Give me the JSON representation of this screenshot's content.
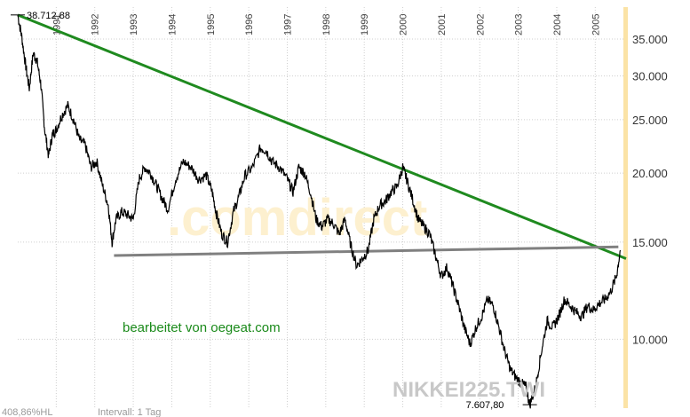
{
  "chart_data": {
    "type": "line",
    "title": "",
    "symbol": "NIKKEI225.TWI",
    "watermark": ".comdirect",
    "annotation": "bearbeitet von oegeat.com",
    "footer": {
      "range": "408,86%HL",
      "interval": "Intervall: 1 Tag"
    },
    "y_scale": "log",
    "ylim": [
      7500,
      40000
    ],
    "xlim": [
      1990.0,
      2005.8
    ],
    "y_axis_position": "right",
    "grid": true,
    "year_labels": [
      "1991",
      "1992",
      "1993",
      "1994",
      "1995",
      "1996",
      "1997",
      "1998",
      "1999",
      "2000",
      "2001",
      "2002",
      "2003",
      "2004",
      "2005"
    ],
    "year_ticks": [
      1991,
      1992,
      1993,
      1994,
      1995,
      1996,
      1997,
      1998,
      1999,
      2000,
      2001,
      2002,
      2003,
      2004,
      2005
    ],
    "y_ticks": [
      10000,
      15000,
      20000,
      25000,
      30000,
      35000
    ],
    "y_tick_labels": [
      "10.000",
      "15.000",
      "20.000",
      "25.000",
      "30.000",
      "35.000"
    ],
    "extremes": {
      "high": {
        "label": "38.712,88",
        "x": 1990.0,
        "y": 38712.88
      },
      "low": {
        "label": "7.607,80",
        "x": 2003.3,
        "y": 7607.8
      }
    },
    "series": [
      {
        "color": "#000000",
        "x": [
          1990.0,
          1990.1,
          1990.2,
          1990.3,
          1990.4,
          1990.5,
          1990.6,
          1990.7,
          1990.8,
          1990.9,
          1991.0,
          1991.15,
          1991.3,
          1991.45,
          1991.6,
          1991.75,
          1991.9,
          1992.05,
          1992.2,
          1992.35,
          1992.45,
          1992.55,
          1992.7,
          1992.85,
          1993.0,
          1993.15,
          1993.3,
          1993.45,
          1993.6,
          1993.75,
          1993.9,
          1994.1,
          1994.3,
          1994.5,
          1994.7,
          1994.9,
          1995.05,
          1995.15,
          1995.3,
          1995.45,
          1995.6,
          1995.75,
          1995.9,
          1996.1,
          1996.3,
          1996.45,
          1996.6,
          1996.8,
          1997.0,
          1997.15,
          1997.3,
          1997.45,
          1997.6,
          1997.75,
          1997.9,
          1998.05,
          1998.2,
          1998.35,
          1998.5,
          1998.65,
          1998.8,
          1998.95,
          1999.1,
          1999.25,
          1999.4,
          1999.55,
          1999.7,
          1999.85,
          2000.0,
          2000.1,
          2000.25,
          2000.4,
          2000.55,
          2000.7,
          2000.85,
          2001.0,
          2001.15,
          2001.3,
          2001.45,
          2001.6,
          2001.75,
          2001.9,
          2002.05,
          2002.2,
          2002.35,
          2002.5,
          2002.65,
          2002.8,
          2002.95,
          2003.1,
          2003.2,
          2003.3,
          2003.45,
          2003.6,
          2003.75,
          2003.9,
          2004.05,
          2004.2,
          2004.35,
          2004.5,
          2004.65,
          2004.8,
          2004.95,
          2005.1,
          2005.25,
          2005.4,
          2005.55,
          2005.65
        ],
        "values": [
          38712,
          35500,
          31500,
          28500,
          33000,
          32000,
          29000,
          24000,
          21500,
          23500,
          24000,
          25500,
          26500,
          25000,
          23000,
          22500,
          20500,
          21000,
          19000,
          17500,
          15000,
          16500,
          17000,
          16800,
          16500,
          19500,
          20500,
          20000,
          19000,
          18000,
          17200,
          19500,
          21000,
          20500,
          19500,
          19800,
          18500,
          17000,
          15500,
          15000,
          17000,
          18200,
          19800,
          20500,
          22200,
          22000,
          21000,
          20500,
          19500,
          18500,
          20500,
          20000,
          18500,
          16500,
          16000,
          16500,
          16200,
          15500,
          16500,
          14800,
          13600,
          14000,
          14500,
          16500,
          17500,
          17800,
          18500,
          18900,
          20500,
          19500,
          18000,
          16500,
          16000,
          15500,
          14200,
          13000,
          13500,
          12500,
          11500,
          10500,
          9800,
          10500,
          11000,
          11800,
          11500,
          10500,
          9500,
          8800,
          8500,
          8300,
          8200,
          7607,
          8200,
          9500,
          10800,
          10500,
          11000,
          11800,
          11500,
          11200,
          11000,
          11500,
          11300,
          11600,
          11800,
          12200,
          13000,
          14500
        ]
      }
    ],
    "lines": [
      {
        "color": "#1f8a1f",
        "x": [
          1990.0,
          2005.8
        ],
        "y": [
          38712,
          14000
        ]
      },
      {
        "color": "#808080",
        "x": [
          1992.5,
          2005.6
        ],
        "y": [
          14180,
          14700
        ]
      }
    ]
  }
}
